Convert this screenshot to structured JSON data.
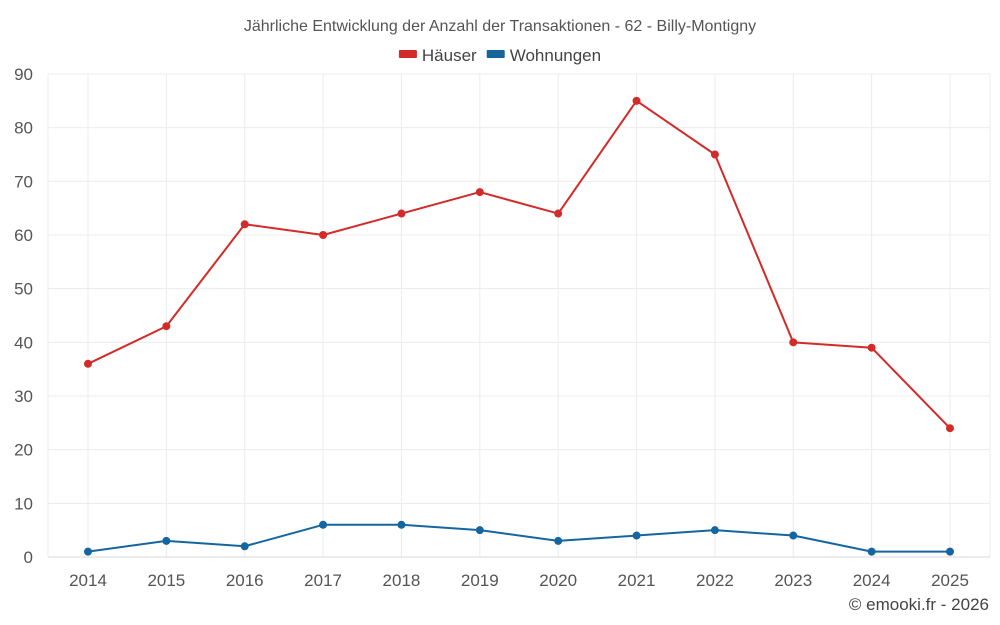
{
  "chart_data": {
    "type": "line",
    "title": "Jährliche Entwicklung der Anzahl der Transaktionen - 62 - Billy-Montigny",
    "categories": [
      "2014",
      "2015",
      "2016",
      "2017",
      "2018",
      "2019",
      "2020",
      "2021",
      "2022",
      "2023",
      "2024",
      "2025"
    ],
    "ylim": [
      0,
      90
    ],
    "yticks": [
      0,
      10,
      20,
      30,
      40,
      50,
      60,
      70,
      80,
      90
    ],
    "grid": true,
    "legend_position": "top-center",
    "series": [
      {
        "name": "Häuser",
        "color": "#d32a2a",
        "values": [
          36,
          43,
          62,
          60,
          64,
          68,
          64,
          85,
          75,
          40,
          39,
          24
        ]
      },
      {
        "name": "Wohnungen",
        "color": "#1566a0",
        "values": [
          1,
          3,
          2,
          6,
          6,
          5,
          3,
          4,
          5,
          4,
          1,
          1
        ]
      }
    ]
  },
  "footer": {
    "copyright": "© emooki.fr - 2026"
  }
}
